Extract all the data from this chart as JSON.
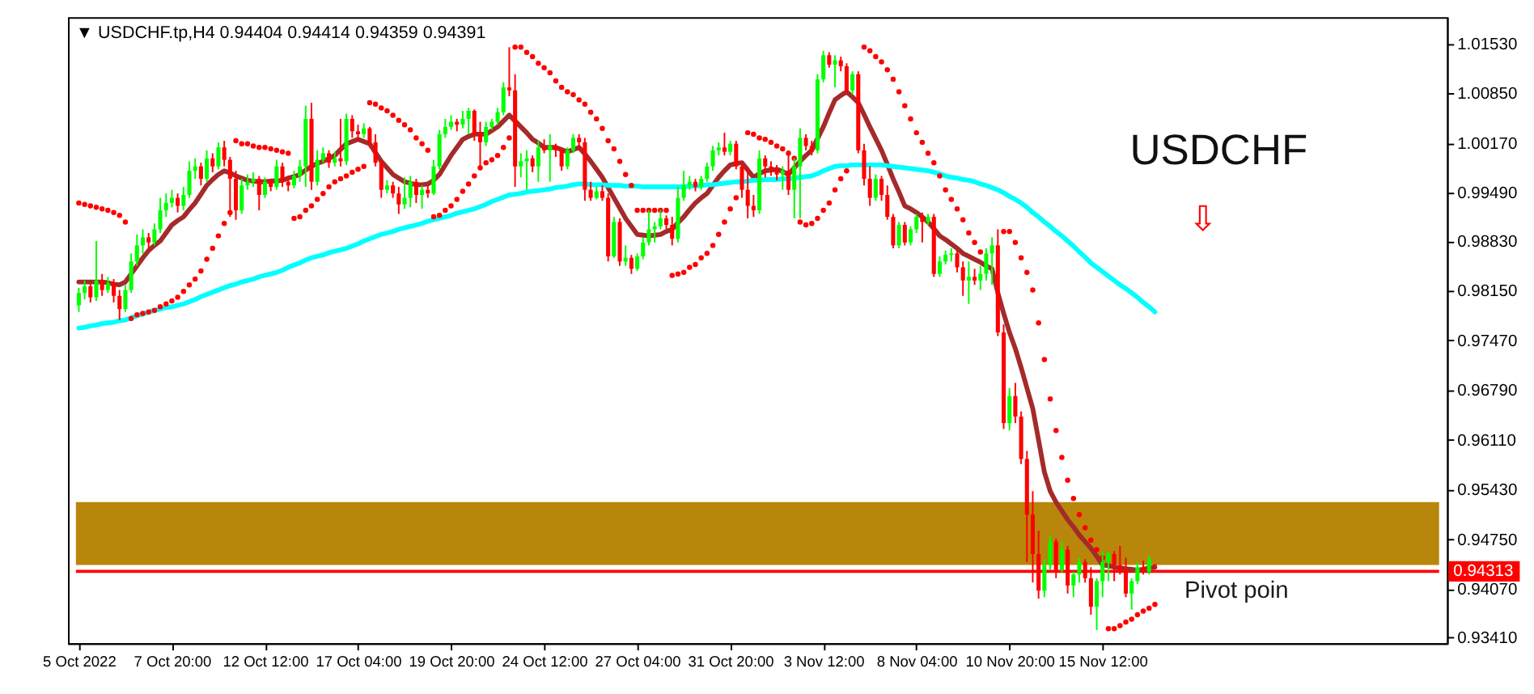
{
  "chart_data": {
    "type": "candlestick",
    "title": "▼ USDCHF.tp,H4  0.94404 0.94414 0.94359 0.94391",
    "categories": [
      "5 Oct 2022",
      null,
      null,
      null,
      null,
      null,
      null,
      null,
      null,
      null,
      null,
      null,
      null,
      null,
      null,
      null,
      "7 Oct 20:00",
      null,
      null,
      null,
      null,
      null,
      null,
      null,
      null,
      null,
      null,
      null,
      null,
      null,
      null,
      null,
      "12 Oct 12:00",
      null,
      null,
      null,
      null,
      null,
      null,
      null,
      null,
      null,
      null,
      null,
      null,
      null,
      null,
      null,
      "17 Oct 04:00",
      null,
      null,
      null,
      null,
      null,
      null,
      null,
      null,
      null,
      null,
      null,
      null,
      null,
      null,
      null,
      "19 Oct 20:00",
      null,
      null,
      null,
      null,
      null,
      null,
      null,
      null,
      null,
      null,
      null,
      null,
      null,
      null,
      null,
      "24 Oct 12:00",
      null,
      null,
      null,
      null,
      null,
      null,
      null,
      null,
      null,
      null,
      null,
      null,
      null,
      null,
      null,
      "27 Oct 04:00",
      null,
      null,
      null,
      null,
      null,
      null,
      null,
      null,
      null,
      null,
      null,
      null,
      null,
      null,
      null,
      "31 Oct 20:00",
      null,
      null,
      null,
      null,
      null,
      null,
      null,
      null,
      null,
      null,
      null,
      null,
      null,
      null,
      null,
      "3 Nov 12:00",
      null,
      null,
      null,
      null,
      null,
      null,
      null,
      null,
      null,
      null,
      null,
      null,
      null,
      null,
      null,
      "8 Nov 04:00",
      null,
      null,
      null,
      null,
      null,
      null,
      null,
      null,
      null,
      null,
      null,
      null,
      null,
      null,
      null,
      "10 Nov 20:00",
      null,
      null,
      null,
      null,
      null,
      null,
      null,
      null,
      null,
      null,
      null,
      null,
      null,
      null,
      null,
      "15 Nov 12:00",
      null,
      null,
      null,
      null,
      null,
      null,
      null,
      null,
      null
    ],
    "ohlc": [
      [
        0.9795,
        0.9819,
        0.9786,
        0.9812
      ],
      [
        0.9812,
        0.9829,
        0.9803,
        0.9821
      ],
      [
        0.9821,
        0.9825,
        0.9799,
        0.9806
      ],
      [
        0.9806,
        0.9883,
        0.9801,
        0.9829
      ],
      [
        0.9829,
        0.9838,
        0.9808,
        0.9816
      ],
      [
        0.9816,
        0.9834,
        0.9812,
        0.9825
      ],
      [
        0.9825,
        0.9831,
        0.9799,
        0.9808
      ],
      [
        0.9808,
        0.9816,
        0.9775,
        0.979
      ],
      [
        0.979,
        0.9823,
        0.9786,
        0.9816
      ],
      [
        0.9816,
        0.9866,
        0.9812,
        0.9855
      ],
      [
        0.9855,
        0.9892,
        0.9849,
        0.9877
      ],
      [
        0.9877,
        0.9899,
        0.9866,
        0.9888
      ],
      [
        0.9888,
        0.9894,
        0.9873,
        0.9881
      ],
      [
        0.9881,
        0.9907,
        0.9877,
        0.9899
      ],
      [
        0.9899,
        0.9942,
        0.9894,
        0.9925
      ],
      [
        0.9925,
        0.9948,
        0.9916,
        0.9935
      ],
      [
        0.9935,
        0.9953,
        0.9929,
        0.9942
      ],
      [
        0.9942,
        0.9948,
        0.9922,
        0.9931
      ],
      [
        0.9931,
        0.9957,
        0.9925,
        0.9946
      ],
      [
        0.9946,
        0.9992,
        0.9942,
        0.9979
      ],
      [
        0.9979,
        0.9996,
        0.9968,
        0.9985
      ],
      [
        0.9985,
        0.999,
        0.9959,
        0.9968
      ],
      [
        0.9968,
        1.0007,
        0.9964,
        0.9996
      ],
      [
        0.9996,
        1.0003,
        0.9977,
        0.9985
      ],
      [
        0.9985,
        1.0018,
        0.9981,
        1.0011
      ],
      [
        1.0011,
        1.002,
        0.9985,
        0.9994
      ],
      [
        0.9994,
        0.9998,
        0.9916,
        0.9968
      ],
      [
        0.9968,
        0.9979,
        0.9912,
        0.9925
      ],
      [
        0.9925,
        0.9968,
        0.992,
        0.9959
      ],
      [
        0.9959,
        0.9974,
        0.9953,
        0.9964
      ],
      [
        0.9964,
        0.9977,
        0.9957,
        0.9968
      ],
      [
        0.9968,
        0.9972,
        0.9925,
        0.9946
      ],
      [
        0.9946,
        0.997,
        0.9942,
        0.9964
      ],
      [
        0.9964,
        0.9968,
        0.9951,
        0.9957
      ],
      [
        0.9957,
        0.9994,
        0.9953,
        0.9985
      ],
      [
        0.9985,
        0.999,
        0.9957,
        0.9964
      ],
      [
        0.9964,
        0.9972,
        0.9951,
        0.9959
      ],
      [
        0.9959,
        0.9979,
        0.9955,
        0.9972
      ],
      [
        0.9972,
        0.9994,
        0.9964,
        0.9985
      ],
      [
        0.9985,
        1.0068,
        0.9957,
        1.005
      ],
      [
        1.005,
        1.0072,
        0.9953,
        0.9964
      ],
      [
        0.9964,
        1.0007,
        0.9959,
        0.9994
      ],
      [
        0.9994,
        1.0011,
        0.999,
        1.0003
      ],
      [
        1.0003,
        1.0007,
        0.9983,
        0.999
      ],
      [
        0.999,
        1.0005,
        0.9985,
        0.9996
      ],
      [
        0.9996,
        1.005,
        0.9985,
        0.9992
      ],
      [
        0.9992,
        1.0057,
        0.9987,
        1.005
      ],
      [
        1.005,
        1.0055,
        1.0024,
        1.0033
      ],
      [
        1.0033,
        1.0042,
        1.002,
        1.0029
      ],
      [
        1.0029,
        1.0044,
        1.0024,
        1.0037
      ],
      [
        1.0037,
        1.0039,
        1.0011,
        1.0018
      ],
      [
        1.0018,
        1.0029,
        0.9985,
        0.999
      ],
      [
        0.999,
        0.9994,
        0.9942,
        0.9953
      ],
      [
        0.9953,
        0.9966,
        0.9948,
        0.9959
      ],
      [
        0.9959,
        0.9964,
        0.9942,
        0.9948
      ],
      [
        0.9948,
        0.9957,
        0.992,
        0.9933
      ],
      [
        0.9933,
        0.997,
        0.9927,
        0.9942
      ],
      [
        0.9942,
        0.9972,
        0.9929,
        0.9964
      ],
      [
        0.9964,
        0.9968,
        0.9935,
        0.9946
      ],
      [
        0.9946,
        0.9959,
        0.9927,
        0.9953
      ],
      [
        0.9953,
        0.9959,
        0.9942,
        0.9948
      ],
      [
        0.9948,
        0.9994,
        0.9946,
        0.9985
      ],
      [
        0.9985,
        1.0035,
        0.9981,
        1.0029
      ],
      [
        1.0029,
        1.005,
        1.0024,
        1.0039
      ],
      [
        1.0039,
        1.0055,
        1.0035,
        1.0046
      ],
      [
        1.0046,
        1.005,
        1.0033,
        1.0042
      ],
      [
        1.0042,
        1.0061,
        1.0037,
        1.005
      ],
      [
        1.005,
        1.0065,
        1.0029,
        1.0061
      ],
      [
        1.0061,
        1.0063,
        1.002,
        1.0029
      ],
      [
        1.0029,
        1.0046,
        0.9985,
        1.0018
      ],
      [
        1.0018,
        1.0046,
        1.0013,
        1.0039
      ],
      [
        1.0039,
        1.005,
        1.0035,
        1.0046
      ],
      [
        1.0046,
        1.0065,
        1.0042,
        1.0059
      ],
      [
        1.0059,
        1.01,
        1.0055,
        1.0093
      ],
      [
        1.0093,
        1.0148,
        1.0081,
        1.0089
      ],
      [
        1.0089,
        1.0111,
        0.9957,
        0.9985
      ],
      [
        0.9985,
        1.0003,
        0.997,
        0.9992
      ],
      [
        0.9992,
        1.0007,
        0.9953,
        0.9996
      ],
      [
        0.9996,
        1.0,
        0.9977,
        0.9985
      ],
      [
        0.9985,
        1.002,
        0.9964,
        1.0011
      ],
      [
        1.0011,
        1.0022,
        1.0003,
        1.0007
      ],
      [
        1.0007,
        1.0029,
        0.9964,
        1.0013
      ],
      [
        1.0013,
        1.0016,
        0.9998,
        1.0007
      ],
      [
        1.0007,
        1.0011,
        0.9979,
        0.9985
      ],
      [
        0.9985,
        1.0011,
        0.9981,
        1.0007
      ],
      [
        1.0007,
        1.0029,
        1.0003,
        1.0024
      ],
      [
        1.0024,
        1.0029,
        1.0007,
        1.0018
      ],
      [
        1.0018,
        1.0024,
        0.9938,
        0.9953
      ],
      [
        0.9953,
        0.9964,
        0.9938,
        0.9942
      ],
      [
        0.9942,
        0.9957,
        0.994,
        0.9951
      ],
      [
        0.9951,
        0.9959,
        0.9938,
        0.9942
      ],
      [
        0.9942,
        0.9948,
        0.9855,
        0.9862
      ],
      [
        0.9862,
        0.9916,
        0.986,
        0.9909
      ],
      [
        0.9909,
        0.9914,
        0.9849,
        0.9855
      ],
      [
        0.9855,
        0.9877,
        0.9849,
        0.986
      ],
      [
        0.986,
        0.9864,
        0.9838,
        0.9845
      ],
      [
        0.9845,
        0.9866,
        0.9842,
        0.9862
      ],
      [
        0.9862,
        0.9888,
        0.9858,
        0.9881
      ],
      [
        0.9881,
        0.9925,
        0.9877,
        0.9899
      ],
      [
        0.9899,
        0.9909,
        0.9881,
        0.9903
      ],
      [
        0.9903,
        0.9925,
        0.9899,
        0.9914
      ],
      [
        0.9914,
        0.9918,
        0.9899,
        0.9905
      ],
      [
        0.9905,
        0.9916,
        0.9877,
        0.9886
      ],
      [
        0.9886,
        0.9957,
        0.9881,
        0.9942
      ],
      [
        0.9942,
        0.9979,
        0.9938,
        0.9959
      ],
      [
        0.9959,
        0.9972,
        0.9953,
        0.9964
      ],
      [
        0.9964,
        0.9968,
        0.9951,
        0.9957
      ],
      [
        0.9957,
        0.9972,
        0.9953,
        0.9968
      ],
      [
        0.9968,
        0.999,
        0.9964,
        0.9985
      ],
      [
        0.9985,
        1.0013,
        0.9979,
        1.0007
      ],
      [
        1.0007,
        1.0018,
        1.0,
        1.0011
      ],
      [
        1.0011,
        1.0031,
        1.0,
        1.0005
      ],
      [
        1.0005,
        1.002,
        1.0,
        1.0016
      ],
      [
        1.0016,
        1.002,
        0.9981,
        0.9985
      ],
      [
        0.9985,
        0.999,
        0.9942,
        0.9953
      ],
      [
        0.9953,
        0.9985,
        0.9914,
        0.9931
      ],
      [
        0.9931,
        0.9946,
        0.9916,
        0.9925
      ],
      [
        0.9925,
        1.0007,
        0.992,
        0.9996
      ],
      [
        0.9996,
        1.0,
        0.997,
        0.9985
      ],
      [
        0.9985,
        0.9992,
        0.9972,
        0.9981
      ],
      [
        0.9981,
        0.9987,
        0.9966,
        0.9974
      ],
      [
        0.9974,
        0.9985,
        0.9953,
        0.9979
      ],
      [
        0.9979,
        1.0007,
        0.9946,
        0.9953
      ],
      [
        0.9953,
        0.9996,
        0.9914,
        0.9985
      ],
      [
        0.9985,
        1.0037,
        0.9914,
        1.0024
      ],
      [
        1.0024,
        1.0029,
        1.0007,
        1.0013
      ],
      [
        1.0013,
        1.002,
        1.0,
        1.0007
      ],
      [
        1.0007,
        1.0111,
        1.0003,
        1.0104
      ],
      [
        1.0104,
        1.0143,
        1.01,
        1.0137
      ],
      [
        1.0137,
        1.0141,
        1.012,
        1.0124
      ],
      [
        1.0124,
        1.0137,
        1.0093,
        1.013
      ],
      [
        1.013,
        1.0135,
        1.0115,
        1.0122
      ],
      [
        1.0122,
        1.0126,
        1.0083,
        1.0089
      ],
      [
        1.0089,
        1.0115,
        1.0083,
        1.0111
      ],
      [
        1.0111,
        1.0115,
        1.0003,
        1.0007
      ],
      [
        1.0007,
        1.0016,
        0.9959,
        0.9968
      ],
      [
        0.9968,
        0.9985,
        0.9931,
        0.9942
      ],
      [
        0.9942,
        0.9974,
        0.9938,
        0.9968
      ],
      [
        0.9968,
        0.9972,
        0.9938,
        0.9946
      ],
      [
        0.9946,
        0.9959,
        0.9912,
        0.9916
      ],
      [
        0.9916,
        0.992,
        0.9873,
        0.9877
      ],
      [
        0.9877,
        0.9909,
        0.9873,
        0.9905
      ],
      [
        0.9905,
        0.9909,
        0.9877,
        0.9881
      ],
      [
        0.9881,
        0.9903,
        0.9877,
        0.9899
      ],
      [
        0.9899,
        0.992,
        0.9894,
        0.9916
      ],
      [
        0.9916,
        0.9922,
        0.9881,
        0.9909
      ],
      [
        0.9909,
        0.992,
        0.9905,
        0.9916
      ],
      [
        0.9916,
        0.992,
        0.9834,
        0.9838
      ],
      [
        0.9838,
        0.9862,
        0.9834,
        0.9855
      ],
      [
        0.9855,
        0.987,
        0.9851,
        0.9864
      ],
      [
        0.9864,
        0.9873,
        0.9855,
        0.9866
      ],
      [
        0.9866,
        0.987,
        0.984,
        0.9847
      ],
      [
        0.9847,
        0.9855,
        0.9808,
        0.9829
      ],
      [
        0.9829,
        0.9855,
        0.9797,
        0.9834
      ],
      [
        0.9834,
        0.9845,
        0.9823,
        0.9829
      ],
      [
        0.9829,
        0.9849,
        0.9816,
        0.9838
      ],
      [
        0.9838,
        0.9873,
        0.9829,
        0.9866
      ],
      [
        0.9866,
        0.9888,
        0.9823,
        0.9877
      ],
      [
        0.9877,
        0.9899,
        0.9753,
        0.9758
      ],
      [
        0.9758,
        0.9769,
        0.9626,
        0.9634
      ],
      [
        0.9634,
        0.9682,
        0.9624,
        0.9671
      ],
      [
        0.9671,
        0.9689,
        0.9634,
        0.9643
      ],
      [
        0.9643,
        0.965,
        0.9578,
        0.9585
      ],
      [
        0.9585,
        0.9596,
        0.9444,
        0.9509
      ],
      [
        0.9509,
        0.9541,
        0.9416,
        0.9455
      ],
      [
        0.9455,
        0.9487,
        0.9394,
        0.9405
      ],
      [
        0.9405,
        0.9448,
        0.9396,
        0.944
      ],
      [
        0.944,
        0.9481,
        0.9433,
        0.9472
      ],
      [
        0.9472,
        0.9476,
        0.9422,
        0.9433
      ],
      [
        0.9433,
        0.9472,
        0.9429,
        0.9461
      ],
      [
        0.9461,
        0.9466,
        0.9401,
        0.9412
      ],
      [
        0.9412,
        0.9431,
        0.9396,
        0.9427
      ],
      [
        0.9427,
        0.945,
        0.9416,
        0.9444
      ],
      [
        0.9444,
        0.9448,
        0.9416,
        0.9422
      ],
      [
        0.9422,
        0.9437,
        0.9372,
        0.9383
      ],
      [
        0.9383,
        0.9422,
        0.9351,
        0.9418
      ],
      [
        0.9418,
        0.9459,
        0.9396,
        0.9444
      ],
      [
        0.9444,
        0.9459,
        0.9418,
        0.9455
      ],
      [
        0.9455,
        0.9459,
        0.9418,
        0.944
      ],
      [
        0.944,
        0.9466,
        0.9427,
        0.9431
      ],
      [
        0.9431,
        0.945,
        0.9396,
        0.9401
      ],
      [
        0.9401,
        0.9422,
        0.9379,
        0.9418
      ],
      [
        0.9418,
        0.9444,
        0.9414,
        0.9437
      ],
      [
        0.9437,
        0.9446,
        0.9427,
        0.9431
      ],
      [
        0.9431,
        0.9453,
        0.9427,
        0.9448
      ],
      [
        0.94404,
        0.94414,
        0.94359,
        0.94391
      ]
    ],
    "colors": [
      "#00ff00",
      "#00ff00",
      "#ff0000",
      "#00ff00",
      "#ff0000",
      "#00ff00",
      "#ff0000",
      "#ff0000",
      "#00ff00",
      "#00ff00",
      "#00ff00",
      "#00ff00",
      "#ff0000",
      "#00ff00",
      "#00ff00",
      "#00ff00",
      "#00ff00",
      "#ff0000",
      "#00ff00",
      "#00ff00",
      "#00ff00",
      "#ff0000",
      "#00ff00",
      "#ff0000",
      "#00ff00",
      "#ff0000",
      "#ff0000",
      "#ff0000",
      "#00ff00",
      "#00ff00",
      "#00ff00",
      "#ff0000",
      "#00ff00",
      "#ff0000",
      "#00ff00",
      "#ff0000",
      "#ff0000",
      "#00ff00",
      "#00ff00",
      "#00ff00",
      "#ff0000",
      "#00ff00",
      "#00ff00",
      "#ff0000",
      "#00ff00",
      "#ff0000",
      "#00ff00",
      "#ff0000",
      "#ff0000",
      "#00ff00",
      "#ff0000",
      "#ff0000",
      "#ff0000",
      "#00ff00",
      "#ff0000",
      "#ff0000",
      "#00ff00",
      "#00ff00",
      "#ff0000",
      "#00ff00",
      "#ff0000",
      "#00ff00",
      "#00ff00",
      "#00ff00",
      "#00ff00",
      "#ff0000",
      "#00ff00",
      "#00ff00",
      "#ff0000",
      "#ff0000",
      "#00ff00",
      "#00ff00",
      "#00ff00",
      "#00ff00",
      "#ff0000",
      "#ff0000",
      "#00ff00",
      "#00ff00",
      "#ff0000",
      "#00ff00",
      "#ff0000",
      "#00ff00",
      "#ff0000",
      "#ff0000",
      "#00ff00",
      "#00ff00",
      "#ff0000",
      "#ff0000",
      "#ff0000",
      "#00ff00",
      "#ff0000",
      "#ff0000",
      "#00ff00",
      "#ff0000",
      "#00ff00",
      "#ff0000",
      "#00ff00",
      "#00ff00",
      "#00ff00",
      "#00ff00",
      "#00ff00",
      "#ff0000",
      "#ff0000",
      "#00ff00",
      "#00ff00",
      "#00ff00",
      "#ff0000",
      "#00ff00",
      "#00ff00",
      "#00ff00",
      "#00ff00",
      "#ff0000",
      "#00ff00",
      "#ff0000",
      "#ff0000",
      "#ff0000",
      "#ff0000",
      "#00ff00",
      "#ff0000",
      "#ff0000",
      "#ff0000",
      "#00ff00",
      "#ff0000",
      "#00ff00",
      "#00ff00",
      "#ff0000",
      "#ff0000",
      "#00ff00",
      "#00ff00",
      "#ff0000",
      "#00ff00",
      "#ff0000",
      "#ff0000",
      "#00ff00",
      "#ff0000",
      "#ff0000",
      "#ff0000",
      "#00ff00",
      "#ff0000",
      "#ff0000",
      "#ff0000",
      "#00ff00",
      "#ff0000",
      "#00ff00",
      "#00ff00",
      "#ff0000",
      "#00ff00",
      "#ff0000",
      "#00ff00",
      "#00ff00",
      "#00ff00",
      "#ff0000",
      "#ff0000",
      "#00ff00",
      "#ff0000",
      "#00ff00",
      "#00ff00",
      "#00ff00",
      "#ff0000",
      "#ff0000",
      "#00ff00",
      "#ff0000",
      "#ff0000",
      "#ff0000",
      "#ff0000",
      "#ff0000",
      "#00ff00",
      "#00ff00",
      "#ff0000",
      "#00ff00",
      "#ff0000",
      "#00ff00",
      "#00ff00",
      "#ff0000",
      "#ff0000",
      "#00ff00",
      "#00ff00",
      "#00ff00",
      "#ff0000",
      "#ff0000",
      "#ff0000",
      "#00ff00",
      "#00ff00",
      "#ff0000",
      "#00ff00",
      "#ff0000"
    ],
    "series": [
      {
        "type": "line",
        "color": "#a52a2a",
        "values": [
          0.9827,
          0.9827,
          0.9827,
          0.9827,
          0.9827,
          0.9826,
          0.9824,
          0.9823,
          0.9827,
          0.9838,
          0.9849,
          0.986,
          0.987,
          0.9877,
          0.9883,
          0.9894,
          0.9905,
          0.9911,
          0.9916,
          0.9926,
          0.9935,
          0.9947,
          0.9959,
          0.9967,
          0.9974,
          0.9979,
          0.9976,
          0.9972,
          0.9969,
          0.9966,
          0.9965,
          0.9964,
          0.9964,
          0.9965,
          0.9965,
          0.9966,
          0.9969,
          0.9971,
          0.9974,
          0.998,
          0.9985,
          0.9989,
          0.9992,
          0.9996,
          1.0,
          1.0008,
          1.0016,
          1.0019,
          1.0022,
          1.0019,
          1.0016,
          1.0004,
          0.9992,
          0.9983,
          0.9974,
          0.9969,
          0.9964,
          0.9962,
          0.996,
          0.996,
          0.9961,
          0.9966,
          0.9974,
          0.9987,
          1.0,
          1.0011,
          1.0022,
          1.0026,
          1.0029,
          1.0029,
          1.0029,
          1.0034,
          1.0039,
          1.0047,
          1.0055,
          1.0047,
          1.0039,
          1.0031,
          1.0022,
          1.0017,
          1.0011,
          1.0011,
          1.0011,
          1.0008,
          1.0005,
          1.0008,
          1.0011,
          1.0002,
          0.9992,
          0.9981,
          0.997,
          0.9956,
          0.9942,
          0.9928,
          0.9914,
          0.9903,
          0.9892,
          0.9891,
          0.989,
          0.9891,
          0.9892,
          0.9896,
          0.9899,
          0.9908,
          0.9916,
          0.9926,
          0.9935,
          0.9942,
          0.9948,
          0.9959,
          0.997,
          0.9979,
          0.9987,
          0.9989,
          0.999,
          0.998,
          0.997,
          0.9975,
          0.9979,
          0.998,
          0.9981,
          0.9978,
          0.9974,
          0.9983,
          0.9992,
          1.0,
          1.0007,
          1.0023,
          1.0039,
          1.0058,
          1.0076,
          1.0082,
          1.0087,
          1.008,
          1.0072,
          1.0056,
          1.0039,
          1.0023,
          1.0007,
          0.9988,
          0.9968,
          0.995,
          0.9931,
          0.9927,
          0.9922,
          0.9916,
          0.9909,
          0.99,
          0.989,
          0.9885,
          0.9879,
          0.9873,
          0.9866,
          0.9862,
          0.9858,
          0.9854,
          0.9849,
          0.9845,
          0.9812,
          0.9784,
          0.9758,
          0.9736,
          0.971,
          0.9682,
          0.9654,
          0.9611,
          0.9567,
          0.9541,
          0.9526,
          0.9514,
          0.9502,
          0.9492,
          0.9481,
          0.9472,
          0.9463,
          0.9452,
          0.944,
          0.9439,
          0.9437,
          0.9436,
          0.9435,
          0.9434,
          0.9433,
          0.9434,
          0.9436,
          0.9437
        ]
      },
      {
        "type": "line",
        "color": "#00ffff",
        "values": [
          0.9764,
          0.9765,
          0.9767,
          0.9768,
          0.977,
          0.9771,
          0.9772,
          0.9774,
          0.9775,
          0.9778,
          0.9781,
          0.9783,
          0.9786,
          0.9788,
          0.979,
          0.9792,
          0.9793,
          0.9795,
          0.9797,
          0.98,
          0.9803,
          0.9807,
          0.981,
          0.9813,
          0.9816,
          0.9819,
          0.9822,
          0.9824,
          0.9827,
          0.9829,
          0.9831,
          0.9834,
          0.9836,
          0.9838,
          0.984,
          0.9843,
          0.9847,
          0.985,
          0.9853,
          0.9857,
          0.986,
          0.9862,
          0.9864,
          0.9867,
          0.9869,
          0.9871,
          0.9873,
          0.9876,
          0.9879,
          0.9883,
          0.9886,
          0.9889,
          0.9892,
          0.9894,
          0.9896,
          0.9899,
          0.9901,
          0.9903,
          0.9905,
          0.9907,
          0.991,
          0.9912,
          0.9914,
          0.9916,
          0.9918,
          0.9921,
          0.9923,
          0.9925,
          0.9927,
          0.993,
          0.9933,
          0.9937,
          0.994,
          0.9943,
          0.9946,
          0.9947,
          0.9948,
          0.995,
          0.9951,
          0.9952,
          0.9953,
          0.9954,
          0.9956,
          0.9957,
          0.9958,
          0.996,
          0.9961,
          0.9961,
          0.996,
          0.996,
          0.996,
          0.9959,
          0.9959,
          0.9959,
          0.9958,
          0.9958,
          0.9958,
          0.9957,
          0.9957,
          0.9957,
          0.9957,
          0.9957,
          0.9957,
          0.9957,
          0.9957,
          0.9958,
          0.9958,
          0.9959,
          0.996,
          0.996,
          0.9961,
          0.9962,
          0.9963,
          0.9964,
          0.9964,
          0.9965,
          0.9966,
          0.9966,
          0.9967,
          0.9967,
          0.9967,
          0.9968,
          0.9968,
          0.9969,
          0.997,
          0.9971,
          0.9972,
          0.9975,
          0.9979,
          0.9982,
          0.9985,
          0.9986,
          0.9986,
          0.9987,
          0.9987,
          0.9987,
          0.9987,
          0.9987,
          0.9987,
          0.9986,
          0.9985,
          0.9984,
          0.9983,
          0.9982,
          0.9981,
          0.998,
          0.9979,
          0.9977,
          0.9975,
          0.9972,
          0.997,
          0.9969,
          0.9967,
          0.9966,
          0.9964,
          0.9961,
          0.9959,
          0.9956,
          0.9953,
          0.9949,
          0.9944,
          0.994,
          0.9935,
          0.9929,
          0.9922,
          0.9916,
          0.9909,
          0.9903,
          0.9896,
          0.989,
          0.9883,
          0.9876,
          0.9868,
          0.9861,
          0.9853,
          0.9847,
          0.9841,
          0.9835,
          0.9829,
          0.9823,
          0.9818,
          0.9812,
          0.9806,
          0.9799,
          0.9793,
          0.9786
        ]
      },
      {
        "type": "scatter",
        "color": "#ff0000",
        "marker": "circle",
        "values": [
          0.9935,
          0.9933,
          0.9931,
          0.9929,
          0.9927,
          0.9925,
          0.9922,
          0.9918,
          0.9909,
          0.9777,
          0.9782,
          0.9784,
          0.9786,
          0.9788,
          0.9793,
          0.9797,
          0.9801,
          0.9806,
          0.9814,
          0.9823,
          0.9831,
          0.9842,
          0.9858,
          0.9873,
          0.989,
          0.9907,
          0.9922,
          1.002,
          1.0016,
          1.0016,
          1.0013,
          1.0011,
          1.0011,
          1.0009,
          1.0007,
          1.0005,
          1.0003,
          0.9914,
          0.9916,
          0.9925,
          0.9931,
          0.994,
          0.9948,
          0.9957,
          0.9964,
          0.9968,
          0.9972,
          0.9977,
          0.9981,
          0.9985,
          1.0072,
          1.007,
          1.0065,
          1.0061,
          1.0055,
          1.0048,
          1.0042,
          1.0035,
          1.0024,
          1.0016,
          1.0007,
          0.9916,
          0.9918,
          0.9925,
          0.9931,
          0.994,
          0.9951,
          0.9961,
          0.9972,
          0.9983,
          0.999,
          0.9994,
          1.0,
          1.0011,
          1.0024,
          1.0148,
          1.0148,
          1.0141,
          1.0135,
          1.0126,
          1.012,
          1.0113,
          1.0102,
          1.0093,
          1.0087,
          1.0083,
          1.0076,
          1.007,
          1.0059,
          1.005,
          1.0037,
          1.002,
          1.0009,
          0.9992,
          0.9974,
          0.9959,
          0.9925,
          0.9925,
          0.9925,
          0.9925,
          0.9925,
          0.9925,
          0.9836,
          0.9838,
          0.984,
          0.9847,
          0.9851,
          0.986,
          0.9866,
          0.9877,
          0.9892,
          0.9909,
          0.9927,
          0.9942,
          null,
          1.0031,
          1.0029,
          1.0024,
          1.0022,
          1.0018,
          1.0013,
          1.0009,
          1.0003,
          0.9996,
          0.9909,
          0.9905,
          0.9907,
          0.9914,
          0.9925,
          0.9935,
          0.9953,
          0.9968,
          0.9979,
          null,
          null,
          1.0148,
          1.0143,
          1.0135,
          1.0128,
          1.0117,
          1.0104,
          1.0087,
          1.0068,
          1.005,
          1.0031,
          1.0018,
          1.0003,
          0.999,
          0.9972,
          0.9953,
          0.994,
          0.9927,
          0.9912,
          0.9894,
          0.9881,
          0.9868,
          null,
          null,
          null,
          0.9896,
          0.9896,
          0.9881,
          0.986,
          0.984,
          0.9816,
          0.9771,
          0.9721,
          0.9667,
          0.9624,
          0.9587,
          0.9556,
          0.9531,
          0.9509,
          0.9491,
          0.9474,
          0.9461,
          0.945,
          0.9353,
          0.9353,
          0.9357,
          0.9362,
          0.9366,
          0.9372,
          0.9377,
          0.9381,
          0.9386
        ]
      }
    ],
    "ylim": [
      0.9333,
      1.0189
    ],
    "yticks": [
      {
        "value": 1.0153,
        "label": "1.01530"
      },
      {
        "value": 1.0085,
        "label": "1.00850"
      },
      {
        "value": 1.0017,
        "label": "1.00170"
      },
      {
        "value": 0.9949,
        "label": "0.99490"
      },
      {
        "value": 0.9883,
        "label": "0.98830"
      },
      {
        "value": 0.9815,
        "label": "0.98150"
      },
      {
        "value": 0.9747,
        "label": "0.97470"
      },
      {
        "value": 0.9679,
        "label": "0.96790"
      },
      {
        "value": 0.9611,
        "label": "0.96110"
      },
      {
        "value": 0.9543,
        "label": "0.95430"
      },
      {
        "value": 0.9475,
        "label": "0.94750"
      },
      {
        "value": 0.9407,
        "label": "0.94070"
      },
      {
        "value": 0.9341,
        "label": "0.93410"
      }
    ],
    "bands": [
      {
        "axis": "y",
        "from": 0.944,
        "to": 0.9526,
        "color": "#b8860b"
      }
    ],
    "ref_lines": [
      {
        "axis": "y",
        "value": 0.94313,
        "label": "0.94313",
        "color": "#ff0000"
      }
    ],
    "annotations": [
      "USDCHF",
      "⇩",
      "Pivot poin"
    ],
    "grid": false
  }
}
